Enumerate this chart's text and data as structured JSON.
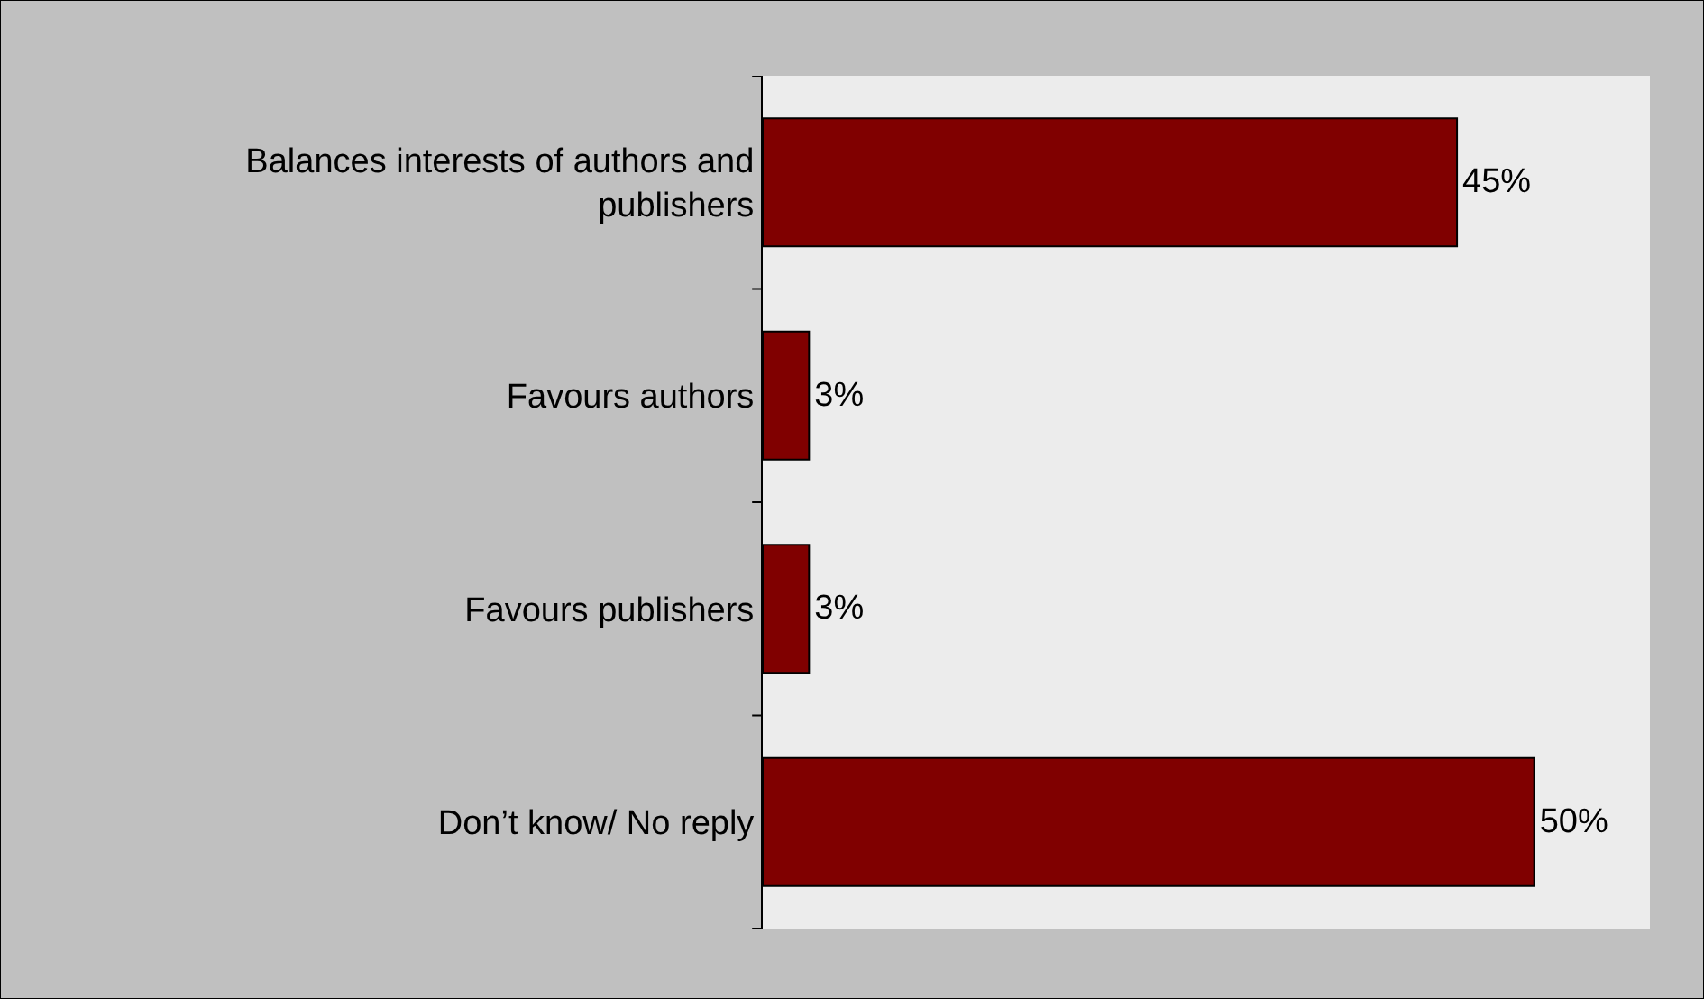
{
  "chart_data": {
    "type": "bar",
    "orientation": "horizontal",
    "categories": [
      "Balances interests of authors and publishers",
      "Favours authors",
      "Favours publishers",
      "Don’t know/ No reply"
    ],
    "values": [
      45,
      3,
      3,
      50
    ],
    "color": "#800000",
    "data_labels": true,
    "value_labels": [
      "45%",
      "3%",
      "3%",
      "50%"
    ]
  }
}
